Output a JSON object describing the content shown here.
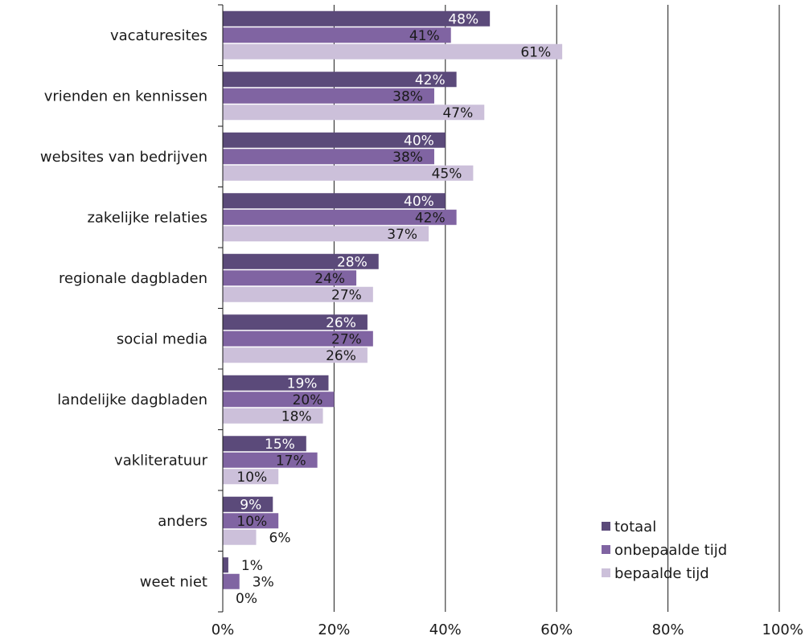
{
  "chart_data": {
    "type": "bar",
    "orientation": "horizontal",
    "title": "",
    "xlabel": "",
    "ylabel": "",
    "xlim": [
      0,
      100
    ],
    "x_ticks": [
      "0%",
      "20%",
      "40%",
      "60%",
      "80%",
      "100%"
    ],
    "x_tick_values": [
      0,
      20,
      40,
      60,
      80,
      100
    ],
    "grid": "vertical",
    "legend_position": "bottom-right",
    "categories": [
      "vacaturesites",
      "vrienden en kennissen",
      "websites van bedrijven",
      "zakelijke relaties",
      "regionale dagbladen",
      "social media",
      "landelijke dagbladen",
      "vakliteratuur",
      "anders",
      "weet niet"
    ],
    "series": [
      {
        "name": "totaal",
        "color": "#5b4a7a",
        "label_color": "#ffffff",
        "values": [
          48,
          42,
          40,
          40,
          28,
          26,
          19,
          15,
          9,
          1
        ],
        "labels": [
          "48%",
          "42%",
          "40%",
          "40%",
          "28%",
          "26%",
          "19%",
          "15%",
          "9%",
          "1%"
        ]
      },
      {
        "name": "onbepaalde tijd",
        "color": "#8064a2",
        "label_color": "#1a1a1a",
        "values": [
          41,
          38,
          38,
          42,
          24,
          27,
          20,
          17,
          10,
          3
        ],
        "labels": [
          "41%",
          "38%",
          "38%",
          "42%",
          "24%",
          "27%",
          "20%",
          "17%",
          "10%",
          "3%"
        ]
      },
      {
        "name": "bepaalde tijd",
        "color": "#ccc0da",
        "label_color": "#1a1a1a",
        "values": [
          61,
          47,
          45,
          37,
          27,
          26,
          18,
          10,
          6,
          0
        ],
        "labels": [
          "61%",
          "47%",
          "45%",
          "37%",
          "27%",
          "26%",
          "18%",
          "10%",
          "6%",
          "0%"
        ]
      }
    ]
  }
}
